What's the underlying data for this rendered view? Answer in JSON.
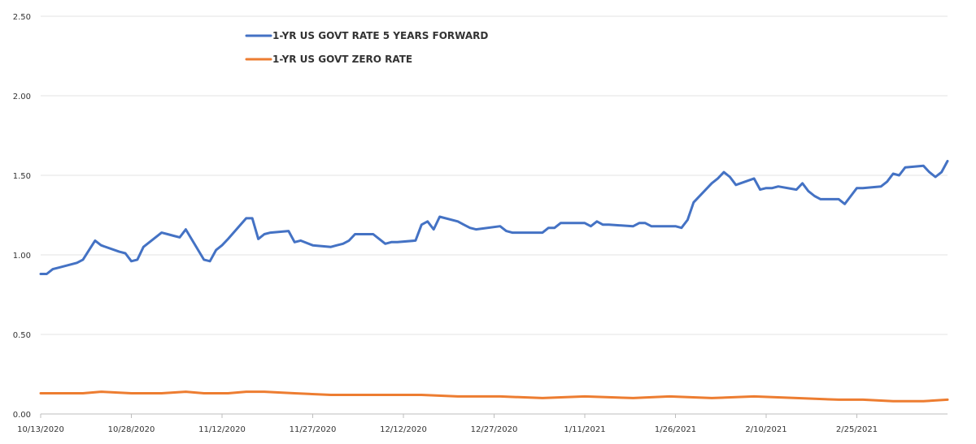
{
  "chart_data": {
    "type": "line",
    "title": "",
    "xlabel": "",
    "ylabel": "",
    "ylim": [
      0,
      2.5
    ],
    "yticks": [
      "0.00",
      "0.50",
      "1.00",
      "1.50",
      "2.00",
      "2.50"
    ],
    "xticks": [
      "10/13/2020",
      "10/28/2020",
      "11/12/2020",
      "11/27/2020",
      "12/12/2020",
      "12/27/2020",
      "1/11/2021",
      "1/26/2021",
      "2/10/2021",
      "2/25/2021"
    ],
    "x_range": [
      "10/13/2020",
      "3/12/2021"
    ],
    "grid": "horizontal",
    "legend_position": "top-left",
    "colors": {
      "forward": "#4472c4",
      "zero": "#ed7d31",
      "grid": "#e3e3e3"
    },
    "series": [
      {
        "name": "1-YR US GOVT RATE 5 YEARS FORWARD",
        "color": "#4472c4",
        "points": [
          [
            "10/13/2020",
            0.88
          ],
          [
            "10/14/2020",
            0.88
          ],
          [
            "10/15/2020",
            0.91
          ],
          [
            "10/16/2020",
            0.92
          ],
          [
            "10/19/2020",
            0.95
          ],
          [
            "10/20/2020",
            0.97
          ],
          [
            "10/21/2020",
            1.03
          ],
          [
            "10/22/2020",
            1.09
          ],
          [
            "10/23/2020",
            1.06
          ],
          [
            "10/26/2020",
            1.02
          ],
          [
            "10/27/2020",
            1.01
          ],
          [
            "10/28/2020",
            0.96
          ],
          [
            "10/29/2020",
            0.97
          ],
          [
            "10/30/2020",
            1.05
          ],
          [
            "11/2/2020",
            1.14
          ],
          [
            "11/3/2020",
            1.13
          ],
          [
            "11/4/2020",
            1.12
          ],
          [
            "11/5/2020",
            1.11
          ],
          [
            "11/6/2020",
            1.16
          ],
          [
            "11/9/2020",
            0.97
          ],
          [
            "11/10/2020",
            0.96
          ],
          [
            "11/11/2020",
            1.03
          ],
          [
            "11/12/2020",
            1.06
          ],
          [
            "11/13/2020",
            1.1
          ],
          [
            "11/16/2020",
            1.23
          ],
          [
            "11/17/2020",
            1.23
          ],
          [
            "11/18/2020",
            1.1
          ],
          [
            "11/19/2020",
            1.13
          ],
          [
            "11/20/2020",
            1.14
          ],
          [
            "11/23/2020",
            1.15
          ],
          [
            "11/24/2020",
            1.08
          ],
          [
            "11/25/2020",
            1.09
          ],
          [
            "11/27/2020",
            1.06
          ],
          [
            "11/30/2020",
            1.05
          ],
          [
            "12/1/2020",
            1.06
          ],
          [
            "12/2/2020",
            1.07
          ],
          [
            "12/3/2020",
            1.09
          ],
          [
            "12/4/2020",
            1.13
          ],
          [
            "12/7/2020",
            1.13
          ],
          [
            "12/8/2020",
            1.1
          ],
          [
            "12/9/2020",
            1.07
          ],
          [
            "12/10/2020",
            1.08
          ],
          [
            "12/11/2020",
            1.08
          ],
          [
            "12/14/2020",
            1.09
          ],
          [
            "12/15/2020",
            1.19
          ],
          [
            "12/16/2020",
            1.21
          ],
          [
            "12/17/2020",
            1.16
          ],
          [
            "12/18/2020",
            1.24
          ],
          [
            "12/21/2020",
            1.21
          ],
          [
            "12/22/2020",
            1.19
          ],
          [
            "12/23/2020",
            1.17
          ],
          [
            "12/24/2020",
            1.16
          ],
          [
            "12/28/2020",
            1.18
          ],
          [
            "12/29/2020",
            1.15
          ],
          [
            "12/30/2020",
            1.14
          ],
          [
            "12/31/2020",
            1.14
          ],
          [
            "1/4/2021",
            1.14
          ],
          [
            "1/5/2021",
            1.17
          ],
          [
            "1/6/2021",
            1.17
          ],
          [
            "1/7/2021",
            1.2
          ],
          [
            "1/8/2021",
            1.2
          ],
          [
            "1/11/2021",
            1.2
          ],
          [
            "1/12/2021",
            1.18
          ],
          [
            "1/13/2021",
            1.21
          ],
          [
            "1/14/2021",
            1.19
          ],
          [
            "1/15/2021",
            1.19
          ],
          [
            "1/19/2021",
            1.18
          ],
          [
            "1/20/2021",
            1.2
          ],
          [
            "1/21/2021",
            1.2
          ],
          [
            "1/22/2021",
            1.18
          ],
          [
            "1/25/2021",
            1.18
          ],
          [
            "1/26/2021",
            1.18
          ],
          [
            "1/27/2021",
            1.17
          ],
          [
            "1/28/2021",
            1.22
          ],
          [
            "1/29/2021",
            1.33
          ],
          [
            "2/1/2021",
            1.45
          ],
          [
            "2/2/2021",
            1.48
          ],
          [
            "2/3/2021",
            1.52
          ],
          [
            "2/4/2021",
            1.49
          ],
          [
            "2/5/2021",
            1.44
          ],
          [
            "2/8/2021",
            1.48
          ],
          [
            "2/9/2021",
            1.41
          ],
          [
            "2/10/2021",
            1.42
          ],
          [
            "2/11/2021",
            1.42
          ],
          [
            "2/12/2021",
            1.43
          ],
          [
            "2/15/2021",
            1.41
          ],
          [
            "2/16/2021",
            1.45
          ],
          [
            "2/17/2021",
            1.4
          ],
          [
            "2/18/2021",
            1.37
          ],
          [
            "2/19/2021",
            1.35
          ],
          [
            "2/22/2021",
            1.35
          ],
          [
            "2/23/2021",
            1.32
          ],
          [
            "2/24/2021",
            1.37
          ],
          [
            "2/25/2021",
            1.42
          ],
          [
            "2/26/2021",
            1.42
          ],
          [
            "3/1/2021",
            1.43
          ],
          [
            "3/2/2021",
            1.46
          ],
          [
            "3/3/2021",
            1.51
          ],
          [
            "3/4/2021",
            1.5
          ],
          [
            "3/5/2021",
            1.55
          ],
          [
            "3/8/2021",
            1.56
          ],
          [
            "3/9/2021",
            1.52
          ],
          [
            "3/10/2021",
            1.49
          ],
          [
            "3/11/2021",
            1.52
          ],
          [
            "3/12/2021",
            1.59
          ]
        ]
      },
      {
        "name": "1-YR US GOVT ZERO RATE",
        "color": "#ed7d31",
        "points": [
          [
            "10/13/2020",
            0.13
          ],
          [
            "10/20/2020",
            0.13
          ],
          [
            "10/23/2020",
            0.14
          ],
          [
            "10/28/2020",
            0.13
          ],
          [
            "11/2/2020",
            0.13
          ],
          [
            "11/6/2020",
            0.14
          ],
          [
            "11/9/2020",
            0.13
          ],
          [
            "11/13/2020",
            0.13
          ],
          [
            "11/16/2020",
            0.14
          ],
          [
            "11/19/2020",
            0.14
          ],
          [
            "11/24/2020",
            0.13
          ],
          [
            "11/30/2020",
            0.12
          ],
          [
            "12/4/2020",
            0.12
          ],
          [
            "12/8/2020",
            0.12
          ],
          [
            "12/11/2020",
            0.12
          ],
          [
            "12/15/2020",
            0.12
          ],
          [
            "12/21/2020",
            0.11
          ],
          [
            "12/28/2020",
            0.11
          ],
          [
            "1/4/2021",
            0.1
          ],
          [
            "1/11/2021",
            0.11
          ],
          [
            "1/19/2021",
            0.1
          ],
          [
            "1/25/2021",
            0.11
          ],
          [
            "2/1/2021",
            0.1
          ],
          [
            "2/8/2021",
            0.11
          ],
          [
            "2/15/2021",
            0.1
          ],
          [
            "2/22/2021",
            0.09
          ],
          [
            "2/26/2021",
            0.09
          ],
          [
            "3/3/2021",
            0.08
          ],
          [
            "3/8/2021",
            0.08
          ],
          [
            "3/12/2021",
            0.09
          ]
        ]
      }
    ]
  }
}
